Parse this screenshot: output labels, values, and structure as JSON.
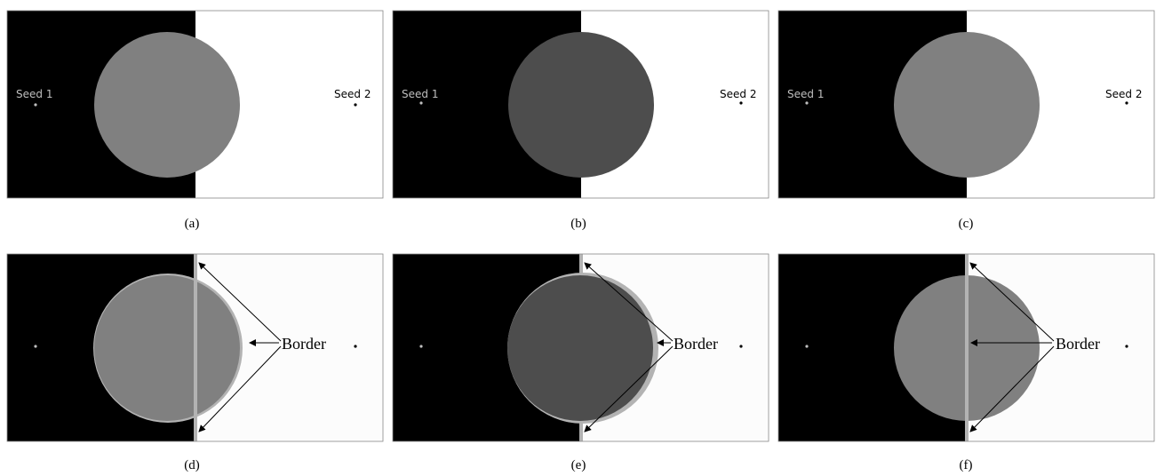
{
  "figure": {
    "panels": [
      {
        "id": "a",
        "caption": "(a)",
        "seed1_label": "Seed 1",
        "seed2_label": "Seed 2",
        "circle_color": "#808080",
        "border_label": ""
      },
      {
        "id": "b",
        "caption": "(b)",
        "seed1_label": "Seed 1",
        "seed2_label": "Seed 2",
        "circle_color": "#4d4d4d",
        "border_label": ""
      },
      {
        "id": "c",
        "caption": "(c)",
        "seed1_label": "Seed 1",
        "seed2_label": "Seed 2",
        "circle_color": "#808080",
        "border_label": ""
      },
      {
        "id": "d",
        "caption": "(d)",
        "seed1_label": "",
        "seed2_label": "",
        "circle_color": "#808080",
        "border_label": "Border"
      },
      {
        "id": "e",
        "caption": "(e)",
        "seed1_label": "",
        "seed2_label": "",
        "circle_color": "#4d4d4d",
        "border_label": "Border"
      },
      {
        "id": "f",
        "caption": "(f)",
        "seed1_label": "",
        "seed2_label": "",
        "circle_color": "#808080",
        "border_label": "Border"
      }
    ],
    "colors": {
      "background_left": "#000000",
      "background_right": "#ffffff",
      "border_band": "#b3b3b3",
      "seed1_dot": "#bfbfbf",
      "seed2_dot": "#000000"
    }
  }
}
